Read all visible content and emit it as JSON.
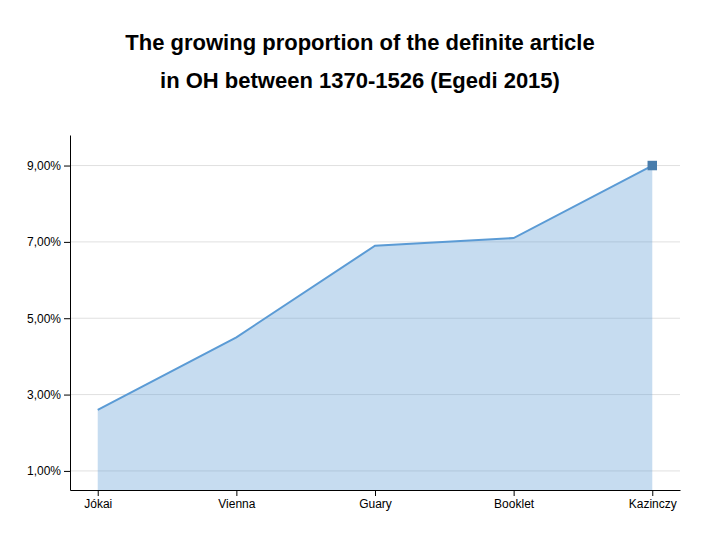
{
  "chart_data": {
    "type": "area",
    "title": "The growing proportion of the definite article",
    "subtitle": "in OH between 1370-1526 (Egedi 2015)",
    "categories": [
      "Jókai",
      "Vienna",
      "Guary",
      "Booklet",
      "Kazinczy"
    ],
    "values": [
      2.6,
      4.5,
      6.9,
      7.1,
      9.0
    ],
    "color": "#5b9bd5",
    "marker": "square",
    "ylim": [
      0.5,
      9.8
    ],
    "yticks": [
      {
        "value": 1.0,
        "label": "1,00%"
      },
      {
        "value": 3.0,
        "label": "3,00%"
      },
      {
        "value": 5.0,
        "label": "5,00%"
      },
      {
        "value": 7.0,
        "label": "7,00%"
      },
      {
        "value": 9.0,
        "label": "9,00%"
      }
    ],
    "grid": true
  }
}
